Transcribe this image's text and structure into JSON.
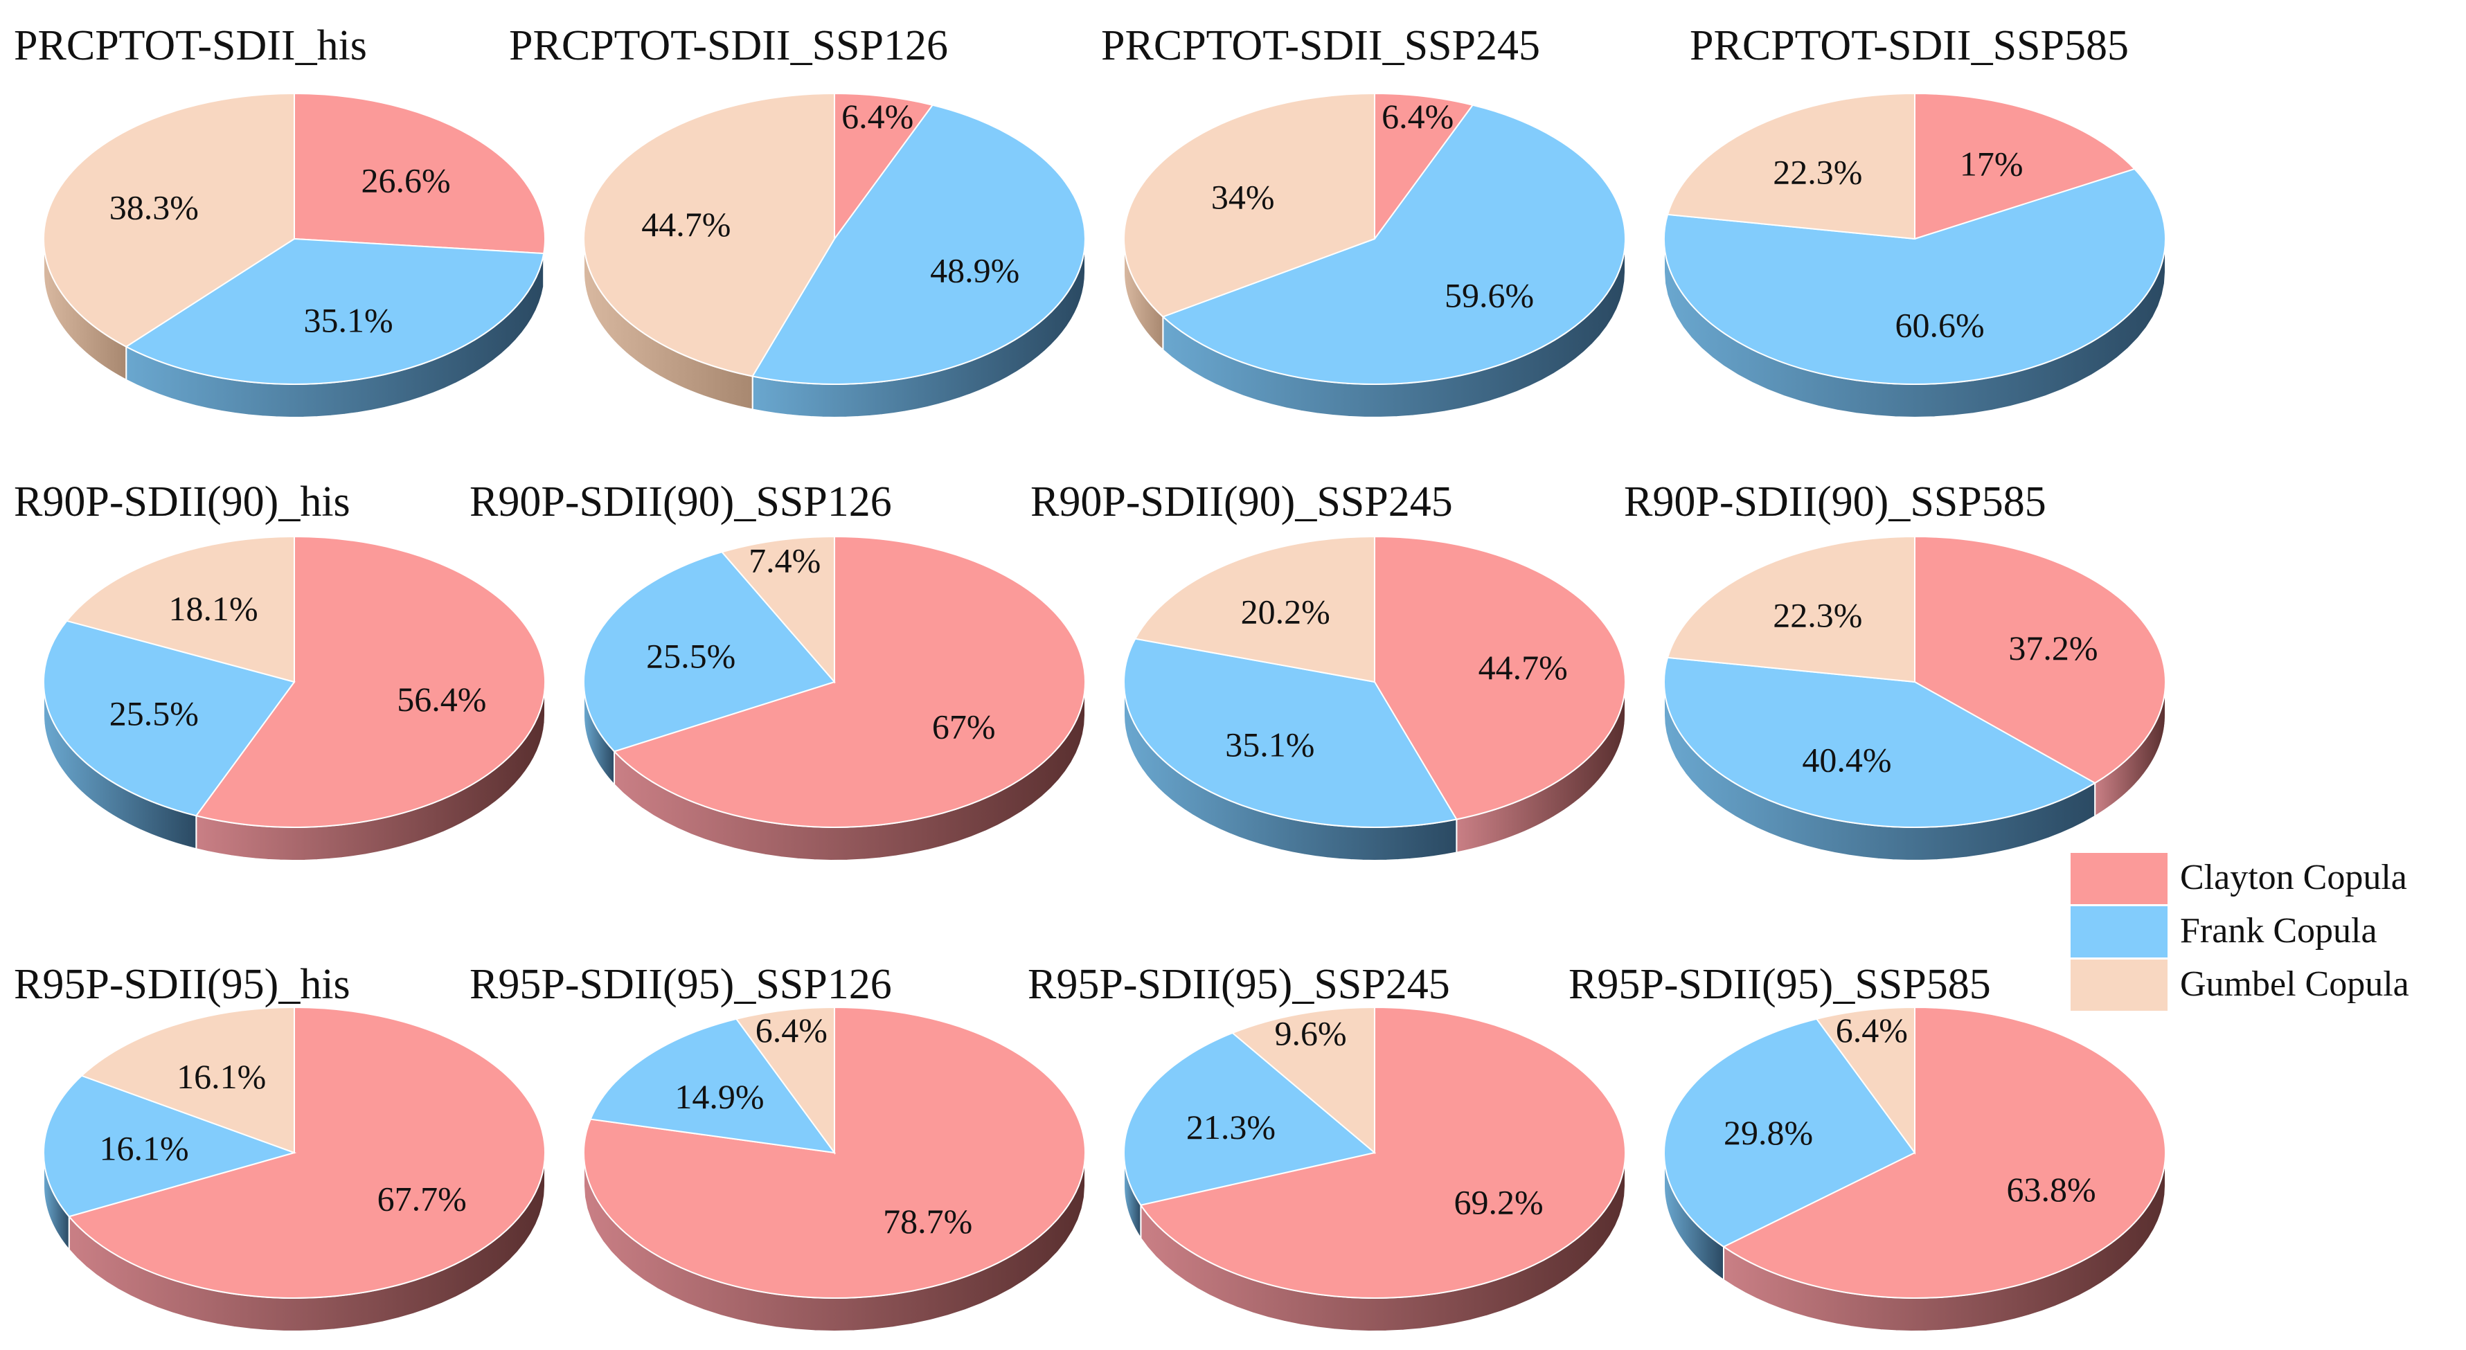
{
  "colors": {
    "clayton": "#fb9a99",
    "frank": "#82ccfc",
    "gumbel": "#f8d7c1",
    "clayton_side_light": "#c97f85",
    "clayton_side_dark": "#5a3030",
    "frank_side_light": "#6aa7cf",
    "frank_side_dark": "#2b4a63",
    "gumbel_side_light": "#d8b8a0",
    "gumbel_side_dark": "#a88870"
  },
  "chart_data": {
    "type": "pie",
    "style": "3d",
    "series_order": [
      "Clayton Copula",
      "Frank Copula",
      "Gumbel Copula"
    ],
    "legend": {
      "placement": "right",
      "entries": [
        {
          "key": "clayton",
          "label": "Clayton Copula"
        },
        {
          "key": "frank",
          "label": "Frank    Copula"
        },
        {
          "key": "gumbel",
          "label": "Gumbel Copula"
        }
      ]
    },
    "charts": [
      {
        "title": "PRCPTOT-SDII_his",
        "values": [
          26.6,
          35.1,
          38.3
        ],
        "labels": [
          "26.6%",
          "35.1%",
          "38.3%"
        ]
      },
      {
        "title": "PRCPTOT-SDII_SSP126",
        "values": [
          6.4,
          48.9,
          44.7
        ],
        "labels": [
          "6.4%",
          "48.9%",
          "44.7%"
        ]
      },
      {
        "title": "PRCPTOT-SDII_SSP245",
        "values": [
          6.4,
          59.6,
          34
        ],
        "labels": [
          "6.4%",
          "59.6%",
          "34%"
        ]
      },
      {
        "title": "PRCPTOT-SDII_SSP585",
        "values": [
          17,
          60.6,
          22.3
        ],
        "labels": [
          "17%",
          "60.6%",
          "22.3%"
        ]
      },
      {
        "title": "R90P-SDII(90)_his",
        "values": [
          56.4,
          25.5,
          18.1
        ],
        "labels": [
          "56.4%",
          "25.5%",
          "18.1%"
        ]
      },
      {
        "title": "R90P-SDII(90)_SSP126",
        "values": [
          67,
          25.5,
          7.4
        ],
        "labels": [
          "67%",
          "25.5%",
          "7.4%"
        ]
      },
      {
        "title": "R90P-SDII(90)_SSP245",
        "values": [
          44.7,
          35.1,
          20.2
        ],
        "labels": [
          "44.7%",
          "35.1%",
          "20.2%"
        ]
      },
      {
        "title": "R90P-SDII(90)_SSP585",
        "values": [
          37.2,
          40.4,
          22.3
        ],
        "labels": [
          "37.2%",
          "40.4%",
          "22.3%"
        ]
      },
      {
        "title": "R95P-SDII(95)_his",
        "values": [
          67.7,
          16.1,
          16.1
        ],
        "labels": [
          "67.7%",
          "16.1%",
          "16.1%"
        ]
      },
      {
        "title": "R95P-SDII(95)_SSP126",
        "values": [
          78.7,
          14.9,
          6.4
        ],
        "labels": [
          "78.7%",
          "14.9%",
          "6.4%"
        ]
      },
      {
        "title": "R95P-SDII(95)_SSP245",
        "values": [
          69.2,
          21.3,
          9.6
        ],
        "labels": [
          "69.2%",
          "21.3%",
          "9.6%"
        ]
      },
      {
        "title": "R95P-SDII(95)_SSP585",
        "values": [
          63.8,
          29.8,
          6.4
        ],
        "labels": [
          "63.8%",
          "29.8%",
          "6.4%"
        ]
      }
    ]
  }
}
